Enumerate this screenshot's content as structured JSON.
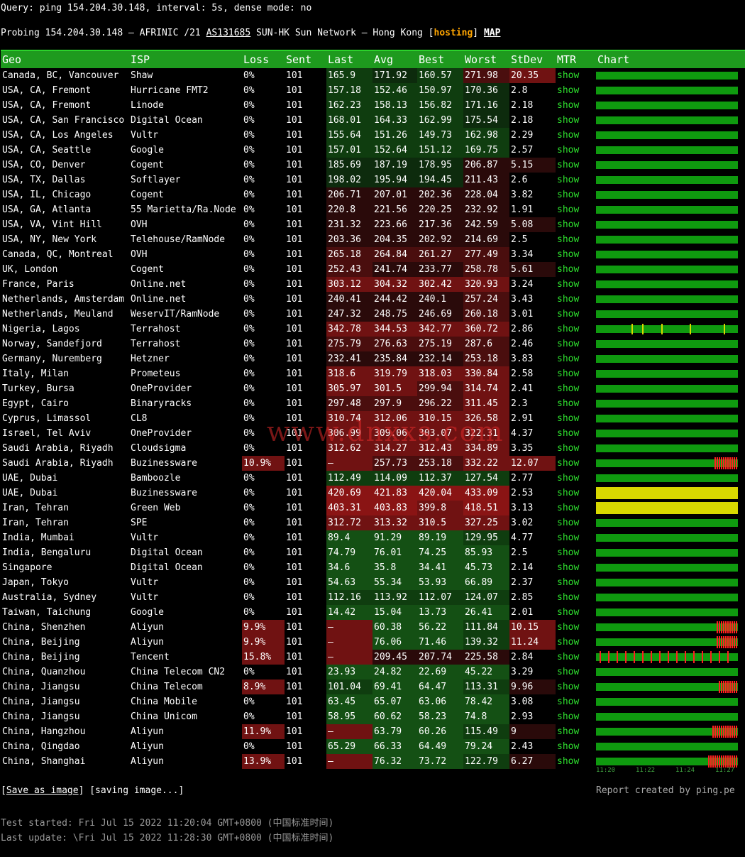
{
  "query": "Query: ping 154.204.30.148, interval: 5s, dense mode: no",
  "probe": {
    "prefix": "Probing 154.204.30.148 — AFRINIC /21 ",
    "asn": "AS131685",
    "network": " SUN-HK Sun Network — Hong Kong [",
    "hosting": "hosting",
    "close": "] ",
    "map": "MAP"
  },
  "headers": [
    "Geo",
    "ISP",
    "Loss",
    "Sent",
    "Last",
    "Avg",
    "Best",
    "Worst",
    "StDev",
    "MTR",
    "Chart"
  ],
  "rows": [
    {
      "geo": "Canada, BC, Vancouver",
      "isp": "Shaw",
      "loss": "0%",
      "sent": "101",
      "last": "165.9",
      "avg": "171.92",
      "best": "160.57",
      "worst": "271.98",
      "stdev": "20.35",
      "mtr": "show"
    },
    {
      "geo": "USA, CA, Fremont",
      "isp": "Hurricane FMT2",
      "loss": "0%",
      "sent": "101",
      "last": "157.18",
      "avg": "152.46",
      "best": "150.97",
      "worst": "170.36",
      "stdev": "2.8",
      "mtr": "show"
    },
    {
      "geo": "USA, CA, Fremont",
      "isp": "Linode",
      "loss": "0%",
      "sent": "101",
      "last": "162.23",
      "avg": "158.13",
      "best": "156.82",
      "worst": "171.16",
      "stdev": "2.18",
      "mtr": "show"
    },
    {
      "geo": "USA, CA, San Francisco",
      "isp": "Digital Ocean",
      "loss": "0%",
      "sent": "101",
      "last": "168.01",
      "avg": "164.33",
      "best": "162.99",
      "worst": "175.54",
      "stdev": "2.18",
      "mtr": "show"
    },
    {
      "geo": "USA, CA, Los Angeles",
      "isp": "Vultr",
      "loss": "0%",
      "sent": "101",
      "last": "155.64",
      "avg": "151.26",
      "best": "149.73",
      "worst": "162.98",
      "stdev": "2.29",
      "mtr": "show"
    },
    {
      "geo": "USA, CA, Seattle",
      "isp": "Google",
      "loss": "0%",
      "sent": "101",
      "last": "157.01",
      "avg": "152.64",
      "best": "151.12",
      "worst": "169.75",
      "stdev": "2.57",
      "mtr": "show"
    },
    {
      "geo": "USA, CO, Denver",
      "isp": "Cogent",
      "loss": "0%",
      "sent": "101",
      "last": "185.69",
      "avg": "187.19",
      "best": "178.95",
      "worst": "206.87",
      "stdev": "5.15",
      "mtr": "show"
    },
    {
      "geo": "USA, TX, Dallas",
      "isp": "Softlayer",
      "loss": "0%",
      "sent": "101",
      "last": "198.02",
      "avg": "195.94",
      "best": "194.45",
      "worst": "211.43",
      "stdev": "2.6",
      "mtr": "show"
    },
    {
      "geo": "USA, IL, Chicago",
      "isp": "Cogent",
      "loss": "0%",
      "sent": "101",
      "last": "206.71",
      "avg": "207.01",
      "best": "202.36",
      "worst": "228.04",
      "stdev": "3.82",
      "mtr": "show"
    },
    {
      "geo": "USA, GA, Atlanta",
      "isp": "55 Marietta/Ra.Node",
      "loss": "0%",
      "sent": "101",
      "last": "220.8",
      "avg": "221.56",
      "best": "220.25",
      "worst": "232.92",
      "stdev": "1.91",
      "mtr": "show"
    },
    {
      "geo": "USA, VA, Vint Hill",
      "isp": "OVH",
      "loss": "0%",
      "sent": "101",
      "last": "231.32",
      "avg": "223.66",
      "best": "217.36",
      "worst": "242.59",
      "stdev": "5.08",
      "mtr": "show"
    },
    {
      "geo": "USA, NY, New York",
      "isp": "Telehouse/RamNode",
      "loss": "0%",
      "sent": "101",
      "last": "203.36",
      "avg": "204.35",
      "best": "202.92",
      "worst": "214.69",
      "stdev": "2.5",
      "mtr": "show"
    },
    {
      "geo": "Canada, QC, Montreal",
      "isp": "OVH",
      "loss": "0%",
      "sent": "101",
      "last": "265.18",
      "avg": "264.84",
      "best": "261.27",
      "worst": "277.49",
      "stdev": "3.34",
      "mtr": "show"
    },
    {
      "geo": "UK, London",
      "isp": "Cogent",
      "loss": "0%",
      "sent": "101",
      "last": "252.43",
      "avg": "241.74",
      "best": "233.77",
      "worst": "258.78",
      "stdev": "5.61",
      "mtr": "show"
    },
    {
      "geo": "France, Paris",
      "isp": "Online.net",
      "loss": "0%",
      "sent": "101",
      "last": "303.12",
      "avg": "304.32",
      "best": "302.42",
      "worst": "320.93",
      "stdev": "3.24",
      "mtr": "show"
    },
    {
      "geo": "Netherlands, Amsterdam",
      "isp": "Online.net",
      "loss": "0%",
      "sent": "101",
      "last": "240.41",
      "avg": "244.42",
      "best": "240.1",
      "worst": "257.24",
      "stdev": "3.43",
      "mtr": "show"
    },
    {
      "geo": "Netherlands, Meuland",
      "isp": "WeservIT/RamNode",
      "loss": "0%",
      "sent": "101",
      "last": "247.32",
      "avg": "248.75",
      "best": "246.69",
      "worst": "260.18",
      "stdev": "3.01",
      "mtr": "show"
    },
    {
      "geo": "Nigeria, Lagos",
      "isp": "Terrahost",
      "loss": "0%",
      "sent": "101",
      "last": "342.78",
      "avg": "344.53",
      "best": "342.77",
      "worst": "360.72",
      "stdev": "2.86",
      "mtr": "show"
    },
    {
      "geo": "Norway, Sandefjord",
      "isp": "Terrahost",
      "loss": "0%",
      "sent": "101",
      "last": "275.79",
      "avg": "276.63",
      "best": "275.19",
      "worst": "287.6",
      "stdev": "2.46",
      "mtr": "show"
    },
    {
      "geo": "Germany, Nuremberg",
      "isp": "Hetzner",
      "loss": "0%",
      "sent": "101",
      "last": "232.41",
      "avg": "235.84",
      "best": "232.14",
      "worst": "253.18",
      "stdev": "3.83",
      "mtr": "show"
    },
    {
      "geo": "Italy, Milan",
      "isp": "Prometeus",
      "loss": "0%",
      "sent": "101",
      "last": "318.6",
      "avg": "319.79",
      "best": "318.03",
      "worst": "330.84",
      "stdev": "2.58",
      "mtr": "show"
    },
    {
      "geo": "Turkey, Bursa",
      "isp": "OneProvider",
      "loss": "0%",
      "sent": "101",
      "last": "305.97",
      "avg": "301.5",
      "best": "299.94",
      "worst": "314.74",
      "stdev": "2.41",
      "mtr": "show"
    },
    {
      "geo": "Egypt, Cairo",
      "isp": "Binaryracks",
      "loss": "0%",
      "sent": "101",
      "last": "297.48",
      "avg": "297.9",
      "best": "296.22",
      "worst": "311.45",
      "stdev": "2.3",
      "mtr": "show"
    },
    {
      "geo": "Cyprus, Limassol",
      "isp": "CL8",
      "loss": "0%",
      "sent": "101",
      "last": "310.74",
      "avg": "312.06",
      "best": "310.15",
      "worst": "326.58",
      "stdev": "2.91",
      "mtr": "show"
    },
    {
      "geo": "Israel, Tel Aviv",
      "isp": "OneProvider",
      "loss": "0%",
      "sent": "101",
      "last": "306.99",
      "avg": "309.06",
      "best": "303.07",
      "worst": "322.31",
      "stdev": "4.37",
      "mtr": "show"
    },
    {
      "geo": "Saudi Arabia, Riyadh",
      "isp": "Cloudsigma",
      "loss": "0%",
      "sent": "101",
      "last": "312.62",
      "avg": "314.27",
      "best": "312.43",
      "worst": "334.89",
      "stdev": "3.35",
      "mtr": "show"
    },
    {
      "geo": "Saudi Arabia, Riyadh",
      "isp": "Buzinessware",
      "loss": "10.9%",
      "sent": "101",
      "last": "–",
      "avg": "257.73",
      "best": "253.18",
      "worst": "332.22",
      "stdev": "12.07",
      "mtr": "show"
    },
    {
      "geo": "UAE, Dubai",
      "isp": "Bamboozle",
      "loss": "0%",
      "sent": "101",
      "last": "112.49",
      "avg": "114.09",
      "best": "112.37",
      "worst": "127.54",
      "stdev": "2.77",
      "mtr": "show"
    },
    {
      "geo": "UAE, Dubai",
      "isp": "Buzinessware",
      "loss": "0%",
      "sent": "101",
      "last": "420.69",
      "avg": "421.83",
      "best": "420.04",
      "worst": "433.09",
      "stdev": "2.53",
      "mtr": "show"
    },
    {
      "geo": "Iran, Tehran",
      "isp": "Green Web",
      "loss": "0%",
      "sent": "101",
      "last": "403.31",
      "avg": "403.83",
      "best": "399.8",
      "worst": "418.51",
      "stdev": "3.13",
      "mtr": "show"
    },
    {
      "geo": "Iran, Tehran",
      "isp": "SPE",
      "loss": "0%",
      "sent": "101",
      "last": "312.72",
      "avg": "313.32",
      "best": "310.5",
      "worst": "327.25",
      "stdev": "3.02",
      "mtr": "show"
    },
    {
      "geo": "India, Mumbai",
      "isp": "Vultr",
      "loss": "0%",
      "sent": "101",
      "last": "89.4",
      "avg": "91.29",
      "best": "89.19",
      "worst": "129.95",
      "stdev": "4.77",
      "mtr": "show"
    },
    {
      "geo": "India, Bengaluru",
      "isp": "Digital Ocean",
      "loss": "0%",
      "sent": "101",
      "last": "74.79",
      "avg": "76.01",
      "best": "74.25",
      "worst": "85.93",
      "stdev": "2.5",
      "mtr": "show"
    },
    {
      "geo": "Singapore",
      "isp": "Digital Ocean",
      "loss": "0%",
      "sent": "101",
      "last": "34.6",
      "avg": "35.8",
      "best": "34.41",
      "worst": "45.73",
      "stdev": "2.14",
      "mtr": "show"
    },
    {
      "geo": "Japan, Tokyo",
      "isp": "Vultr",
      "loss": "0%",
      "sent": "101",
      "last": "54.63",
      "avg": "55.34",
      "best": "53.93",
      "worst": "66.89",
      "stdev": "2.37",
      "mtr": "show"
    },
    {
      "geo": "Australia, Sydney",
      "isp": "Vultr",
      "loss": "0%",
      "sent": "101",
      "last": "112.16",
      "avg": "113.92",
      "best": "112.07",
      "worst": "124.07",
      "stdev": "2.85",
      "mtr": "show"
    },
    {
      "geo": "Taiwan, Taichung",
      "isp": "Google",
      "loss": "0%",
      "sent": "101",
      "last": "14.42",
      "avg": "15.04",
      "best": "13.73",
      "worst": "26.41",
      "stdev": "2.01",
      "mtr": "show"
    },
    {
      "geo": "China, Shenzhen",
      "isp": "Aliyun",
      "loss": "9.9%",
      "sent": "101",
      "last": "–",
      "avg": "60.38",
      "best": "56.22",
      "worst": "111.84",
      "stdev": "10.15",
      "mtr": "show"
    },
    {
      "geo": "China, Beijing",
      "isp": "Aliyun",
      "loss": "9.9%",
      "sent": "101",
      "last": "–",
      "avg": "76.06",
      "best": "71.46",
      "worst": "139.32",
      "stdev": "11.24",
      "mtr": "show"
    },
    {
      "geo": "China, Beijing",
      "isp": "Tencent",
      "loss": "15.8%",
      "sent": "101",
      "last": "–",
      "avg": "209.45",
      "best": "207.74",
      "worst": "225.58",
      "stdev": "2.84",
      "mtr": "show"
    },
    {
      "geo": "China, Quanzhou",
      "isp": "China Telecom CN2",
      "loss": "0%",
      "sent": "101",
      "last": "23.93",
      "avg": "24.82",
      "best": "22.69",
      "worst": "45.22",
      "stdev": "3.29",
      "mtr": "show"
    },
    {
      "geo": "China, Jiangsu",
      "isp": "China Telecom",
      "loss": "8.9%",
      "sent": "101",
      "last": "101.04",
      "avg": "69.41",
      "best": "64.47",
      "worst": "113.31",
      "stdev": "9.96",
      "mtr": "show"
    },
    {
      "geo": "China, Jiangsu",
      "isp": "China Mobile",
      "loss": "0%",
      "sent": "101",
      "last": "63.45",
      "avg": "65.07",
      "best": "63.06",
      "worst": "78.42",
      "stdev": "3.08",
      "mtr": "show"
    },
    {
      "geo": "China, Jiangsu",
      "isp": "China Unicom",
      "loss": "0%",
      "sent": "101",
      "last": "58.95",
      "avg": "60.62",
      "best": "58.23",
      "worst": "74.8",
      "stdev": "2.93",
      "mtr": "show"
    },
    {
      "geo": "China, Hangzhou",
      "isp": "Aliyun",
      "loss": "11.9%",
      "sent": "101",
      "last": "–",
      "avg": "63.79",
      "best": "60.26",
      "worst": "115.49",
      "stdev": "9",
      "mtr": "show"
    },
    {
      "geo": "China, Qingdao",
      "isp": "Aliyun",
      "loss": "0%",
      "sent": "101",
      "last": "65.29",
      "avg": "66.33",
      "best": "64.49",
      "worst": "79.24",
      "stdev": "2.43",
      "mtr": "show"
    },
    {
      "geo": "China, Shanghai",
      "isp": "Aliyun",
      "loss": "13.9%",
      "sent": "101",
      "last": "–",
      "avg": "76.32",
      "best": "73.72",
      "worst": "122.79",
      "stdev": "6.27",
      "mtr": "show"
    }
  ],
  "chart_ticks": [
    "11:20",
    "11:22",
    "11:24",
    "11:27"
  ],
  "footer": {
    "open": "[",
    "save": "Save as image",
    "rest": "] [saving image...]",
    "report": "Report created by ping.pe",
    "started": "Test started: Fri Jul 15 2022 11:20:04 GMT+0800 (中国标准时间)",
    "updated": "Last update: \\Fri Jul 15 2022 11:28:30 GMT+0800 (中国标准时间)"
  },
  "watermark": "www.dnxxs.com",
  "colors": {
    "header": "#1e9a1e",
    "good": "#0f9a0f",
    "loss": "#ff2020",
    "warn": "#d8d800",
    "link": "#2ee02e"
  }
}
